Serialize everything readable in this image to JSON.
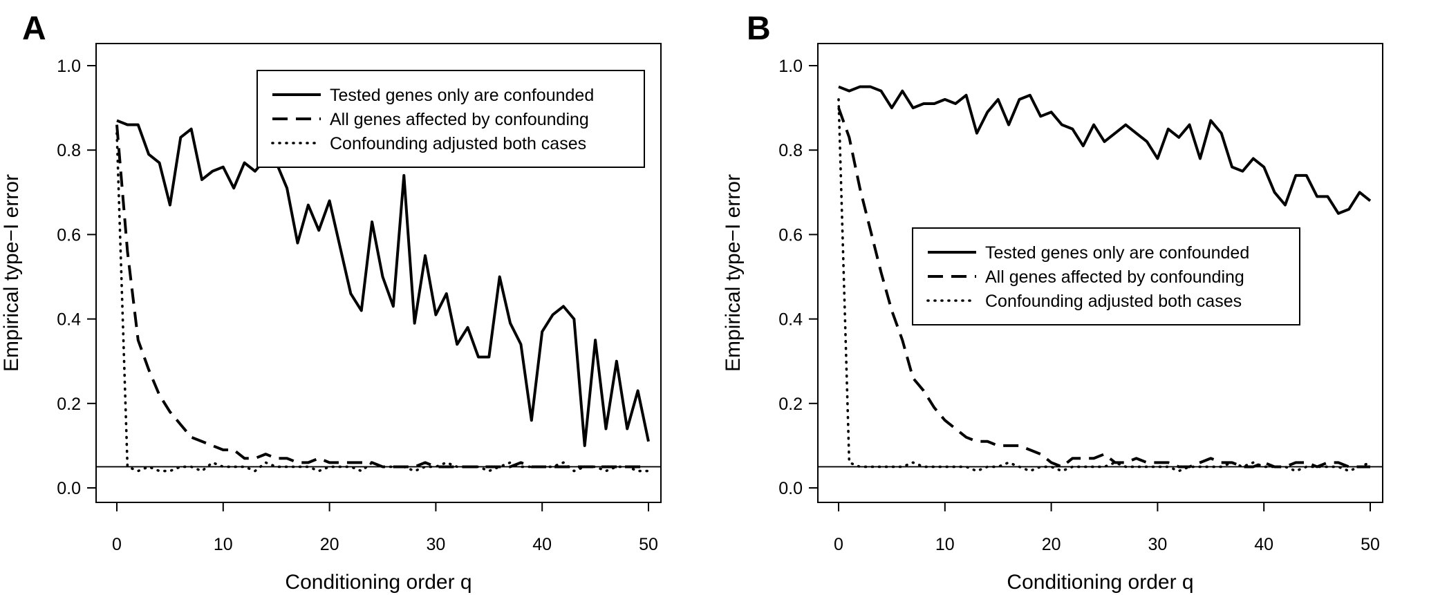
{
  "chart_data": [
    {
      "panel_label": "A",
      "type": "line",
      "xlabel": "Conditioning order q",
      "ylabel": "Empirical type−I error",
      "xlim": [
        0,
        50
      ],
      "ylim": [
        0,
        1
      ],
      "xticks": [
        0,
        10,
        20,
        30,
        40,
        50
      ],
      "xtick_labels": [
        "0",
        "10",
        "20",
        "30",
        "40",
        "50"
      ],
      "yticks": [
        0,
        0.2,
        0.4,
        0.6,
        0.8,
        1.0
      ],
      "ytick_labels": [
        "0.0",
        "0.2",
        "0.4",
        "0.6",
        "0.8",
        "1.0"
      ],
      "reference_line": 0.05,
      "legend_position": "top-right",
      "x": [
        0,
        1,
        2,
        3,
        4,
        5,
        6,
        7,
        8,
        9,
        10,
        11,
        12,
        13,
        14,
        15,
        16,
        17,
        18,
        19,
        20,
        21,
        22,
        23,
        24,
        25,
        26,
        27,
        28,
        29,
        30,
        31,
        32,
        33,
        34,
        35,
        36,
        37,
        38,
        39,
        40,
        41,
        42,
        43,
        44,
        45,
        46,
        47,
        48,
        49,
        50
      ],
      "series": [
        {
          "name": "Tested genes only are confounded",
          "style": "solid",
          "values": [
            0.87,
            0.86,
            0.86,
            0.79,
            0.77,
            0.67,
            0.83,
            0.85,
            0.73,
            0.75,
            0.76,
            0.71,
            0.77,
            0.75,
            0.78,
            0.77,
            0.71,
            0.58,
            0.67,
            0.61,
            0.68,
            0.57,
            0.46,
            0.42,
            0.63,
            0.5,
            0.43,
            0.74,
            0.39,
            0.55,
            0.41,
            0.46,
            0.34,
            0.38,
            0.31,
            0.31,
            0.5,
            0.39,
            0.34,
            0.16,
            0.37,
            0.41,
            0.43,
            0.4,
            0.1,
            0.35,
            0.14,
            0.3,
            0.14,
            0.23,
            0.11
          ]
        },
        {
          "name": "All genes affected by confounding",
          "style": "dashed",
          "values": [
            0.86,
            0.56,
            0.35,
            0.28,
            0.22,
            0.18,
            0.15,
            0.12,
            0.11,
            0.1,
            0.09,
            0.09,
            0.07,
            0.07,
            0.08,
            0.07,
            0.07,
            0.06,
            0.06,
            0.07,
            0.06,
            0.06,
            0.06,
            0.06,
            0.06,
            0.05,
            0.05,
            0.05,
            0.05,
            0.06,
            0.05,
            0.05,
            0.05,
            0.05,
            0.05,
            0.05,
            0.05,
            0.05,
            0.06,
            0.05,
            0.05,
            0.05,
            0.05,
            0.05,
            0.05,
            0.05,
            0.05,
            0.05,
            0.05,
            0.05,
            0.05
          ]
        },
        {
          "name": "Confounding adjusted both cases",
          "style": "dotted",
          "values": [
            0.84,
            0.05,
            0.04,
            0.05,
            0.04,
            0.04,
            0.05,
            0.05,
            0.04,
            0.06,
            0.05,
            0.05,
            0.05,
            0.04,
            0.06,
            0.05,
            0.05,
            0.05,
            0.05,
            0.04,
            0.05,
            0.05,
            0.05,
            0.04,
            0.06,
            0.05,
            0.05,
            0.05,
            0.04,
            0.05,
            0.05,
            0.06,
            0.05,
            0.05,
            0.05,
            0.04,
            0.05,
            0.06,
            0.05,
            0.05,
            0.05,
            0.05,
            0.06,
            0.04,
            0.05,
            0.05,
            0.04,
            0.05,
            0.05,
            0.04,
            0.04
          ]
        }
      ]
    },
    {
      "panel_label": "B",
      "type": "line",
      "xlabel": "Conditioning order q",
      "ylabel": "Empirical type−I error",
      "xlim": [
        0,
        50
      ],
      "ylim": [
        0,
        1
      ],
      "xticks": [
        0,
        10,
        20,
        30,
        40,
        50
      ],
      "xtick_labels": [
        "0",
        "10",
        "20",
        "30",
        "40",
        "50"
      ],
      "yticks": [
        0,
        0.2,
        0.4,
        0.6,
        0.8,
        1.0
      ],
      "ytick_labels": [
        "0.0",
        "0.2",
        "0.4",
        "0.6",
        "0.8",
        "1.0"
      ],
      "reference_line": 0.05,
      "legend_position": "center-right",
      "x": [
        0,
        1,
        2,
        3,
        4,
        5,
        6,
        7,
        8,
        9,
        10,
        11,
        12,
        13,
        14,
        15,
        16,
        17,
        18,
        19,
        20,
        21,
        22,
        23,
        24,
        25,
        26,
        27,
        28,
        29,
        30,
        31,
        32,
        33,
        34,
        35,
        36,
        37,
        38,
        39,
        40,
        41,
        42,
        43,
        44,
        45,
        46,
        47,
        48,
        49,
        50
      ],
      "series": [
        {
          "name": "Tested genes only are confounded",
          "style": "solid",
          "values": [
            0.95,
            0.94,
            0.95,
            0.95,
            0.94,
            0.9,
            0.94,
            0.9,
            0.91,
            0.91,
            0.92,
            0.91,
            0.93,
            0.84,
            0.89,
            0.92,
            0.86,
            0.92,
            0.93,
            0.88,
            0.89,
            0.86,
            0.85,
            0.81,
            0.86,
            0.82,
            0.84,
            0.86,
            0.84,
            0.82,
            0.78,
            0.85,
            0.83,
            0.86,
            0.78,
            0.87,
            0.84,
            0.76,
            0.75,
            0.78,
            0.76,
            0.7,
            0.67,
            0.74,
            0.74,
            0.69,
            0.69,
            0.65,
            0.66,
            0.7,
            0.68
          ]
        },
        {
          "name": "All genes affected by confounding",
          "style": "dashed",
          "values": [
            0.9,
            0.83,
            0.71,
            0.61,
            0.51,
            0.42,
            0.35,
            0.26,
            0.23,
            0.19,
            0.16,
            0.14,
            0.12,
            0.11,
            0.11,
            0.1,
            0.1,
            0.1,
            0.09,
            0.08,
            0.06,
            0.05,
            0.07,
            0.07,
            0.07,
            0.08,
            0.06,
            0.06,
            0.07,
            0.06,
            0.06,
            0.06,
            0.05,
            0.05,
            0.06,
            0.07,
            0.06,
            0.06,
            0.05,
            0.05,
            0.06,
            0.05,
            0.05,
            0.06,
            0.06,
            0.05,
            0.06,
            0.06,
            0.05,
            0.05,
            0.05
          ]
        },
        {
          "name": "Confounding adjusted both cases",
          "style": "dotted",
          "values": [
            0.92,
            0.06,
            0.05,
            0.05,
            0.05,
            0.05,
            0.05,
            0.06,
            0.05,
            0.05,
            0.05,
            0.05,
            0.05,
            0.04,
            0.05,
            0.05,
            0.06,
            0.05,
            0.04,
            0.05,
            0.05,
            0.04,
            0.05,
            0.05,
            0.05,
            0.05,
            0.06,
            0.05,
            0.05,
            0.05,
            0.05,
            0.05,
            0.04,
            0.05,
            0.05,
            0.05,
            0.05,
            0.06,
            0.05,
            0.06,
            0.05,
            0.05,
            0.05,
            0.04,
            0.05,
            0.05,
            0.05,
            0.05,
            0.04,
            0.05,
            0.06
          ]
        }
      ]
    }
  ]
}
